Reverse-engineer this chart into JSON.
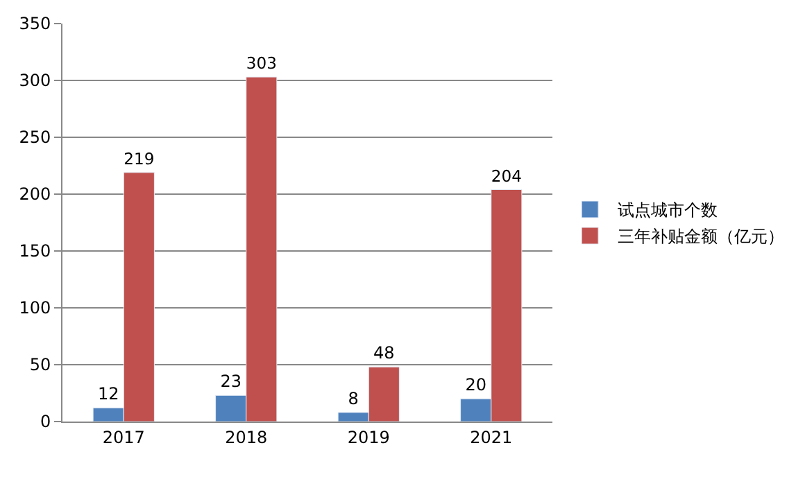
{
  "chart_data": {
    "type": "bar",
    "categories": [
      "2017",
      "2018",
      "2019",
      "2021"
    ],
    "series": [
      {
        "name": "试点城市个数",
        "color": "#4f81bd",
        "values": [
          12,
          23,
          8,
          20
        ]
      },
      {
        "name": "三年补贴金额（亿元）",
        "color": "#c0504d",
        "values": [
          219,
          303,
          48,
          204
        ]
      }
    ],
    "ylim": [
      0,
      350
    ],
    "yticks": [
      0,
      50,
      100,
      150,
      200,
      250,
      300,
      350
    ],
    "grid": "y",
    "data_labels": true,
    "legend": "right"
  }
}
